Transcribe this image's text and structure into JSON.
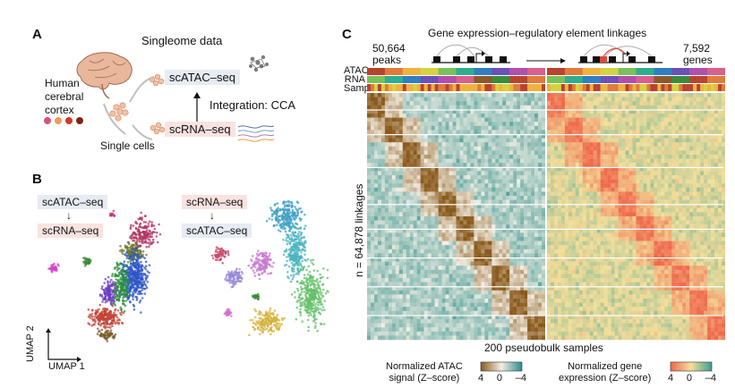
{
  "panelA": {
    "label": "A",
    "title": "Singleome data",
    "tissue_lines": [
      "Human",
      "cerebral",
      "cortex"
    ],
    "tissue_dot_colors": [
      "#d2557a",
      "#ee9a5b",
      "#cf3a2a",
      "#7e2417"
    ],
    "single_cells": "Single cells",
    "atac": "scATAC–seq",
    "rna": "scRNA–seq",
    "integration": "Integration: CCA"
  },
  "panelB": {
    "label": "B",
    "left_top": "scATAC–seq",
    "left_bottom": "scRNA–seq",
    "right_top": "scRNA–seq",
    "right_bottom": "scATAC–seq",
    "umap2": "UMAP 2",
    "umap1": "UMAP 1"
  },
  "panelC": {
    "label": "C",
    "title": "Gene expression–regulatory element linkages",
    "peaks_count": "50,664",
    "peaks_word": "peaks",
    "genes_count": "7,592",
    "genes_word": "genes",
    "row_labels": [
      "ATAC",
      "RNA",
      "Sample"
    ],
    "y_label": "n = 64,878 linkages",
    "x_label": "200 pseudobulk samples",
    "legend_atac_lines": [
      "Normalized ATAC",
      "signal (Z–score)"
    ],
    "legend_atac_ticks": [
      "4",
      "0",
      "–4"
    ],
    "legend_rna_lines": [
      "Normalized gene",
      "expression (Z–score)"
    ],
    "legend_rna_ticks": [
      "4",
      "0",
      "–4"
    ],
    "colors": {
      "atac_high": "#8a5a1c",
      "atac_mid": "#f4efe4",
      "atac_low": "#2a8e8a",
      "rna_high": "#ef6a4e",
      "rna_mid": "#f4df9a",
      "rna_low": "#3a9d93"
    }
  }
}
